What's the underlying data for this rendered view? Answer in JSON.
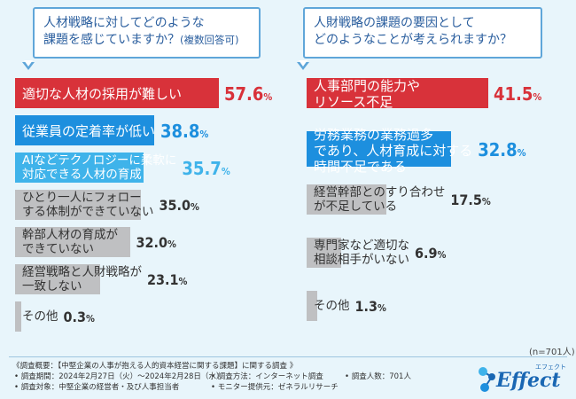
{
  "left_question": {
    "line1": "人材戦略に対してどのような",
    "line2": "課題を感じていますか？",
    "note": "(複数回答可)"
  },
  "right_question": {
    "line1": "人財戦略の課題の要因として",
    "line2": "どのようなことが考えられますか？"
  },
  "sample_note": "(n=701人)",
  "colors": {
    "highlight": "#d8323a",
    "second": "#1d8fde",
    "third": "#3fb3ea",
    "other": "#bfc0c2",
    "background": "#e8f5fb"
  },
  "chart_data": [
    {
      "type": "bar",
      "orientation": "horizontal",
      "unit": "%",
      "categories": [
        [
          "適切な人材の採用が難しい"
        ],
        [
          "従業員の定着率が低い"
        ],
        [
          "AIなどテクノロジーに柔軟に",
          "対応できる人材の育成"
        ],
        [
          "ひとり一人にフォロー",
          "する体制ができていない"
        ],
        [
          "幹部人材の育成が",
          "できていない"
        ],
        [
          "経営戦略と人財戦略が",
          "一致しない"
        ],
        [
          "その他"
        ]
      ],
      "values": [
        57.6,
        38.8,
        35.7,
        35.0,
        32.0,
        23.1,
        0.3
      ],
      "value_labels": [
        [
          "57.6",
          "%"
        ],
        [
          "38.8",
          "%"
        ],
        [
          "35.7",
          "%"
        ],
        [
          "35.0",
          "%"
        ],
        [
          "32.0",
          "%"
        ],
        [
          "23.1",
          "%"
        ],
        [
          "0.3",
          "%"
        ]
      ]
    },
    {
      "type": "bar",
      "orientation": "horizontal",
      "unit": "%",
      "categories": [
        [
          "人事部門の能力や",
          "リソース不足"
        ],
        [
          "労務業務の業務過多",
          "であり、人材育成に対する",
          "時間不足である"
        ],
        [
          "経営幹部とのすり合わせ",
          "が不足している"
        ],
        [
          "専門家など適切な",
          "相談相手がいない"
        ],
        [
          "その他"
        ]
      ],
      "values": [
        41.5,
        32.8,
        17.5,
        6.9,
        1.3
      ],
      "value_labels": [
        [
          "41.5",
          "%"
        ],
        [
          "32.8",
          "%"
        ],
        [
          "17.5",
          "%"
        ],
        [
          "6.9",
          "%"
        ],
        [
          "1.3",
          "%"
        ]
      ]
    }
  ],
  "footer": {
    "overview": "《調査概要：【中堅企業の人事が抱える人的資本経営に関する課題】に関する調査 》",
    "period": "• 調査期間：2024年2月27日（火）〜2024年2月28日（水）",
    "method": "• 調査方法：インターネット調査",
    "count": "• 調査人数：701人",
    "target": "• 調査対象：中堅企業の経営者・及び人事担当者",
    "provider": "• モニター提供元：ゼネラルリサーチ"
  },
  "logo": {
    "word": "Effect",
    "kana": "エフェクト"
  }
}
